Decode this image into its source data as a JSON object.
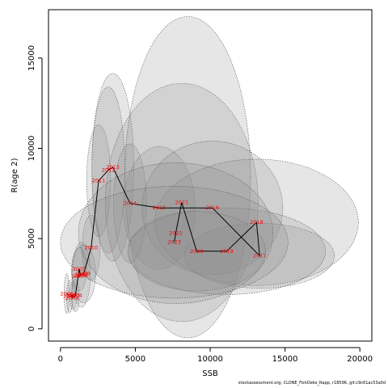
{
  "chart_data": {
    "type": "line",
    "title": "",
    "xlabel": "SSB",
    "ylabel": "R(age 2)",
    "xlim": [
      0,
      20000
    ],
    "ylim": [
      0,
      17000
    ],
    "x_ticks": [
      0,
      5000,
      10000,
      15000,
      20000
    ],
    "y_ticks": [
      0,
      5000,
      10000,
      15000
    ],
    "grid": false,
    "series": [
      {
        "points": [
          {
            "year": "2000",
            "x": 420,
            "y": 1950
          },
          {
            "year": "2001",
            "x": 620,
            "y": 1800
          },
          {
            "year": "2002",
            "x": 850,
            "y": 1850
          },
          {
            "year": "2003",
            "x": 780,
            "y": 1700
          },
          {
            "year": "2004",
            "x": 1000,
            "y": 1850
          },
          {
            "year": "2005",
            "x": 1250,
            "y": 3300
          },
          {
            "year": "2006",
            "x": 1350,
            "y": 2950
          },
          {
            "year": "2007",
            "x": 1200,
            "y": 2900
          },
          {
            "year": "2008",
            "x": 1400,
            "y": 3000
          },
          {
            "year": "2009",
            "x": 1550,
            "y": 3050
          },
          {
            "year": "2010",
            "x": 2050,
            "y": 4500
          },
          {
            "year": "2011",
            "x": 2550,
            "y": 8200
          },
          {
            "year": "2012",
            "x": 3200,
            "y": 8800
          },
          {
            "year": "2013",
            "x": 3500,
            "y": 8950
          },
          {
            "year": "2014",
            "x": 4650,
            "y": 6950
          },
          {
            "year": "2015",
            "x": 6600,
            "y": 6700
          },
          {
            "year": "2016",
            "x": 10150,
            "y": 6700
          },
          {
            "year": "2017",
            "x": 13300,
            "y": 4050
          },
          {
            "year": "2018",
            "x": 13100,
            "y": 5900
          },
          {
            "year": "2019",
            "x": 11100,
            "y": 4300
          },
          {
            "year": "2020",
            "x": 9100,
            "y": 4300
          },
          {
            "year": "2021",
            "x": 8100,
            "y": 7000
          },
          {
            "year": "2022",
            "x": 7700,
            "y": 5300
          },
          {
            "year": "2023",
            "x": 7600,
            "y": 4800
          }
        ]
      }
    ],
    "uncertainty_ellipses": [
      {
        "cx": 420,
        "cy": 1950,
        "rx": 180,
        "ry": 1100
      },
      {
        "cx": 620,
        "cy": 1800,
        "rx": 200,
        "ry": 900
      },
      {
        "cx": 850,
        "cy": 1850,
        "rx": 220,
        "ry": 800
      },
      {
        "cx": 1000,
        "cy": 1850,
        "rx": 260,
        "ry": 900
      },
      {
        "cx": 1250,
        "cy": 3300,
        "rx": 500,
        "ry": 1200
      },
      {
        "cx": 1400,
        "cy": 3000,
        "rx": 600,
        "ry": 1800
      },
      {
        "cx": 1550,
        "cy": 3050,
        "rx": 800,
        "ry": 1600
      },
      {
        "cx": 2050,
        "cy": 4500,
        "rx": 600,
        "ry": 1800
      },
      {
        "cx": 2550,
        "cy": 8200,
        "rx": 800,
        "ry": 3100
      },
      {
        "cx": 3200,
        "cy": 8800,
        "rx": 1100,
        "ry": 4600
      },
      {
        "cx": 3500,
        "cy": 8950,
        "rx": 1400,
        "ry": 5200
      },
      {
        "cx": 4650,
        "cy": 6950,
        "rx": 1100,
        "ry": 3300
      },
      {
        "cx": 6600,
        "cy": 6700,
        "rx": 2400,
        "ry": 3400
      },
      {
        "cx": 8100,
        "cy": 7000,
        "rx": 5100,
        "ry": 6600
      },
      {
        "cx": 8500,
        "cy": 8400,
        "rx": 4200,
        "ry": 8900
      },
      {
        "cx": 10150,
        "cy": 6700,
        "rx": 4700,
        "ry": 3700
      },
      {
        "cx": 13300,
        "cy": 4050,
        "rx": 5000,
        "ry": 1800
      },
      {
        "cx": 13100,
        "cy": 5900,
        "rx": 6800,
        "ry": 3500
      },
      {
        "cx": 11100,
        "cy": 4300,
        "rx": 6600,
        "ry": 2400
      },
      {
        "cx": 9100,
        "cy": 4300,
        "rx": 4600,
        "ry": 2200
      },
      {
        "cx": 7700,
        "cy": 5300,
        "rx": 6500,
        "ry": 3900
      },
      {
        "cx": 7600,
        "cy": 4800,
        "rx": 7600,
        "ry": 3100
      }
    ]
  },
  "credit": "stockassessment.org, CLONE_FishOeko_Rapp, r18596, git:c9c61ac53a0d"
}
